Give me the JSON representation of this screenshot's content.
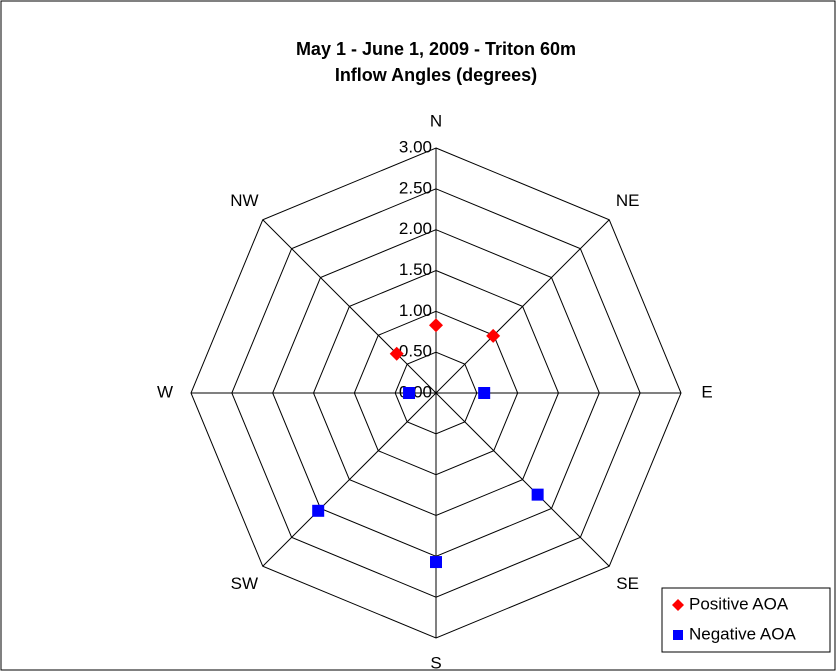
{
  "chart_data": {
    "type": "radar",
    "title": "May 1 - June 1, 2009 - Triton 60m",
    "subtitle": "Inflow Angles (degrees)",
    "categories": [
      "N",
      "NE",
      "E",
      "SE",
      "S",
      "SW",
      "W",
      "NW"
    ],
    "series": [
      {
        "name": "Positive AOA",
        "color": "#ff0000",
        "marker": "diamond",
        "values": [
          0.83,
          0.99,
          null,
          null,
          null,
          null,
          null,
          0.68
        ]
      },
      {
        "name": "Negative AOA",
        "color": "#0000ff",
        "marker": "square",
        "values": [
          null,
          null,
          0.59,
          1.76,
          2.07,
          2.04,
          0.33,
          null
        ]
      }
    ],
    "ylim": [
      0,
      3
    ],
    "yticks": [
      {
        "value": 0,
        "label": "0.00"
      },
      {
        "value": 0.5,
        "label": "0.50"
      },
      {
        "value": 1,
        "label": "1.00"
      },
      {
        "value": 1.5,
        "label": "1.50"
      },
      {
        "value": 2,
        "label": "2.00"
      },
      {
        "value": 2.5,
        "label": "2.50"
      },
      {
        "value": 3,
        "label": "3.00"
      }
    ],
    "grid": true,
    "legend": "bottom-right"
  }
}
